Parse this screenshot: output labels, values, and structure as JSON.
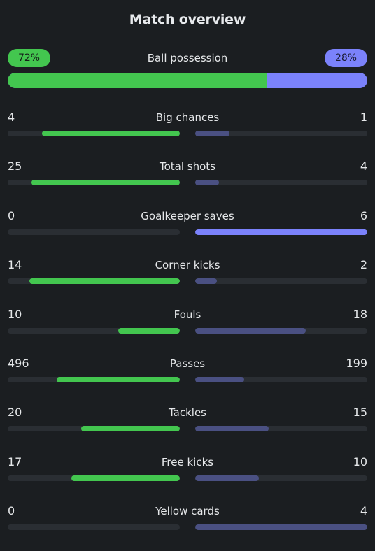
{
  "title": "Match overview",
  "colors": {
    "home": "#43c64f",
    "away": "#7b82fb",
    "away_muted": "#4a5082",
    "track": "#2a2e33",
    "background": "#1b1e21"
  },
  "possession": {
    "label": "Ball possession",
    "home_text": "72%",
    "away_text": "28%",
    "home": 72,
    "away": 28
  },
  "stats": [
    {
      "label": "Big chances",
      "home": 4,
      "away": 1
    },
    {
      "label": "Total shots",
      "home": 25,
      "away": 4
    },
    {
      "label": "Goalkeeper saves",
      "home": 0,
      "away": 6
    },
    {
      "label": "Corner kicks",
      "home": 14,
      "away": 2
    },
    {
      "label": "Fouls",
      "home": 10,
      "away": 18
    },
    {
      "label": "Passes",
      "home": 496,
      "away": 199
    },
    {
      "label": "Tackles",
      "home": 20,
      "away": 15
    },
    {
      "label": "Free kicks",
      "home": 17,
      "away": 10
    },
    {
      "label": "Yellow cards",
      "home": 0,
      "away": 4
    }
  ]
}
